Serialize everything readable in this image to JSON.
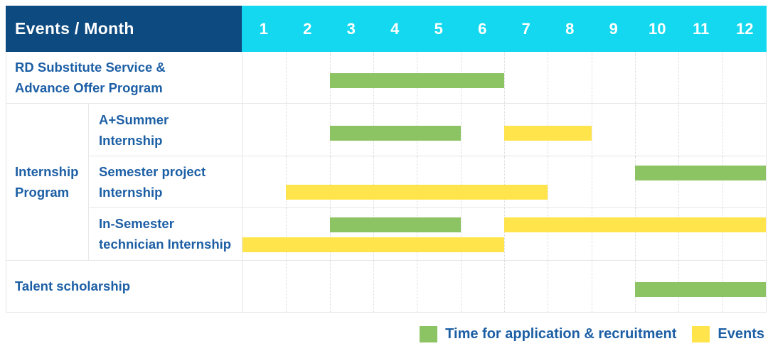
{
  "header": {
    "title": "Events / Month",
    "months": [
      "1",
      "2",
      "3",
      "4",
      "5",
      "6",
      "7",
      "8",
      "9",
      "10",
      "11",
      "12"
    ]
  },
  "group_label": {
    "lines": [
      "Internship",
      "Program"
    ]
  },
  "rows": [
    {
      "id": "rd-substitute-service",
      "label_lines": [
        "RD Substitute Service &",
        "Advance Offer Program"
      ],
      "group": null,
      "bars": [
        {
          "kind": "application",
          "start": 3,
          "end": 6,
          "lane": "single"
        }
      ]
    },
    {
      "id": "a-plus-summer-internship",
      "label_lines": [
        "A+Summer",
        "Internship"
      ],
      "group": "internship-program",
      "bars": [
        {
          "kind": "application",
          "start": 3,
          "end": 5,
          "lane": "single"
        },
        {
          "kind": "event",
          "start": 7,
          "end": 8,
          "lane": "single"
        }
      ]
    },
    {
      "id": "semester-project-internship",
      "label_lines": [
        "Semester project",
        "Internship"
      ],
      "group": "internship-program",
      "bars": [
        {
          "kind": "application",
          "start": 10,
          "end": 12,
          "lane": "top"
        },
        {
          "kind": "event",
          "start": 2,
          "end": 7,
          "lane": "bottom"
        }
      ]
    },
    {
      "id": "in-semester-technician-internship",
      "label_lines": [
        "In-Semester",
        "technician Internship"
      ],
      "group": "internship-program",
      "bars": [
        {
          "kind": "application",
          "start": 3,
          "end": 5,
          "lane": "top"
        },
        {
          "kind": "event",
          "start": 7,
          "end": 12,
          "lane": "top"
        },
        {
          "kind": "event",
          "start": 1,
          "end": 6,
          "lane": "bottom"
        }
      ]
    },
    {
      "id": "talent-scholarship",
      "label_lines": [
        "Talent scholarship"
      ],
      "group": null,
      "bars": [
        {
          "kind": "application",
          "start": 10,
          "end": 12,
          "lane": "single"
        }
      ]
    }
  ],
  "legend": [
    {
      "kind": "application",
      "label": "Time for application & recruitment"
    },
    {
      "kind": "event",
      "label": "Events"
    }
  ],
  "colors": {
    "header_bg": "#0D4A80",
    "month_header_bg": "#13D8EF",
    "header_text": "#FFFFFF",
    "label_text": "#1D5FA5",
    "bar_application": "#8CC363",
    "bar_event": "#FFE44C",
    "grid_solid": "#E7E7E7",
    "grid_dotted": "#D9D9D9"
  },
  "chart_data": {
    "type": "bar",
    "subtype": "gantt-schedule",
    "title": "Events / Month",
    "x": {
      "label": "Month",
      "ticks": [
        1,
        2,
        3,
        4,
        5,
        6,
        7,
        8,
        9,
        10,
        11,
        12
      ],
      "range": [
        1,
        12
      ]
    },
    "grid": "dotted-vertical-month-lines",
    "legend_position": "bottom-right",
    "series_legend": [
      "Time for application & recruitment",
      "Events"
    ],
    "tasks": [
      {
        "name": "RD Substitute Service & Advance Offer Program",
        "group": null,
        "spans": [
          {
            "series": "Time for application & recruitment",
            "start_month": 3,
            "end_month": 6
          }
        ]
      },
      {
        "name": "A+Summer Internship",
        "group": "Internship Program",
        "spans": [
          {
            "series": "Time for application & recruitment",
            "start_month": 3,
            "end_month": 5
          },
          {
            "series": "Events",
            "start_month": 7,
            "end_month": 8
          }
        ]
      },
      {
        "name": "Semester project Internship",
        "group": "Internship Program",
        "spans": [
          {
            "series": "Time for application & recruitment",
            "start_month": 10,
            "end_month": 12
          },
          {
            "series": "Events",
            "start_month": 2,
            "end_month": 7
          }
        ]
      },
      {
        "name": "In-Semester technician Internship",
        "group": "Internship Program",
        "spans": [
          {
            "series": "Time for application & recruitment",
            "start_month": 3,
            "end_month": 5
          },
          {
            "series": "Events",
            "start_month": 7,
            "end_month": 12
          },
          {
            "series": "Events",
            "start_month": 1,
            "end_month": 6
          }
        ]
      },
      {
        "name": "Talent scholarship",
        "group": null,
        "spans": [
          {
            "series": "Time for application & recruitment",
            "start_month": 10,
            "end_month": 12
          }
        ]
      }
    ]
  }
}
